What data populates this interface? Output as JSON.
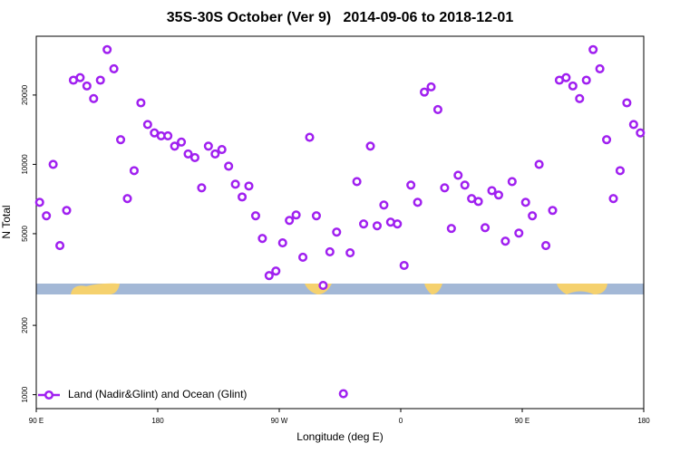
{
  "chart_data": {
    "type": "scatter",
    "title": "35S-30S October (Ver 9)   2014-09-06 to 2018-12-01",
    "x_label": "Longitude (deg E)",
    "y_label": "N Total",
    "xlim": [
      -270,
      180
    ],
    "xticks": [
      {
        "value": -270,
        "label": "90 E"
      },
      {
        "value": -180,
        "label": "180"
      },
      {
        "value": -90,
        "label": "90 W"
      },
      0,
      {
        "value": 90,
        "label": "90 E"
      },
      180
    ],
    "ylim": [
      870,
      36000
    ],
    "y_scale": "log",
    "yticks": [
      1000,
      2000,
      5000,
      10000,
      20000
    ],
    "legend_position": "bottom left",
    "series": [
      {
        "name": "Land (Nadir&Glint) and Ocean (Glint)",
        "color": "#a020f0",
        "x": [
          -267.5,
          -262.5,
          -257.5,
          -252.5,
          -247.5,
          -242.5,
          -237.5,
          -232.5,
          -227.5,
          -222.5,
          -217.5,
          -212.5,
          -207.5,
          -202.5,
          -197.5,
          -192.5,
          -187.5,
          -182.5,
          -177.5,
          -172.5,
          -167.5,
          -162.5,
          -157.5,
          -152.5,
          -147.5,
          -142.5,
          -137.5,
          -132.5,
          -127.5,
          -122.5,
          -117.5,
          -112.5,
          -107.5,
          -102.5,
          -97.5,
          -92.5,
          -87.5,
          -82.5,
          -77.5,
          -72.5,
          -67.5,
          -62.5,
          -57.5,
          -52.5,
          -47.5,
          -42.5,
          -37.5,
          -32.5,
          -27.5,
          -22.5,
          -17.5,
          -12.5,
          -7.5,
          -2.5,
          2.5,
          7.5,
          12.5,
          17.5,
          22.5,
          27.5,
          32.5,
          37.5,
          42.5,
          47.5,
          52.5,
          57.5,
          62.5,
          67.5,
          72.5,
          77.5,
          82.5,
          87.5,
          92.5,
          97.5,
          102.5,
          107.5,
          112.5,
          117.5,
          122.5,
          127.5,
          132.5,
          137.5,
          142.5,
          147.5,
          152.5,
          157.5,
          162.5,
          167.5,
          172.5,
          177.5
        ],
        "values": [
          6840,
          5980,
          10000,
          4440,
          6310,
          23200,
          23800,
          21900,
          19300,
          23200,
          31500,
          26000,
          12800,
          7100,
          9390,
          18500,
          14900,
          13700,
          13300,
          13300,
          12000,
          12500,
          11100,
          10700,
          7910,
          12000,
          11100,
          11600,
          9820,
          8200,
          7220,
          8050,
          5980,
          4770,
          3290,
          3440,
          4560,
          5710,
          6030,
          3950,
          13100,
          5980,
          2980,
          4170,
          5080,
          1010,
          4130,
          8420,
          5510,
          12000,
          5410,
          6660,
          5610,
          5510,
          3640,
          8130,
          6840,
          20600,
          21700,
          17300,
          7910,
          5270,
          8970,
          8130,
          7100,
          6900,
          5310,
          7690,
          7360,
          4640,
          8420,
          5030,
          6840,
          5980,
          10000,
          4440,
          6310,
          23200,
          23800,
          21900,
          19300,
          23200,
          31500,
          26000,
          12800,
          7100,
          9390,
          18500,
          14900,
          13700
        ]
      }
    ]
  }
}
